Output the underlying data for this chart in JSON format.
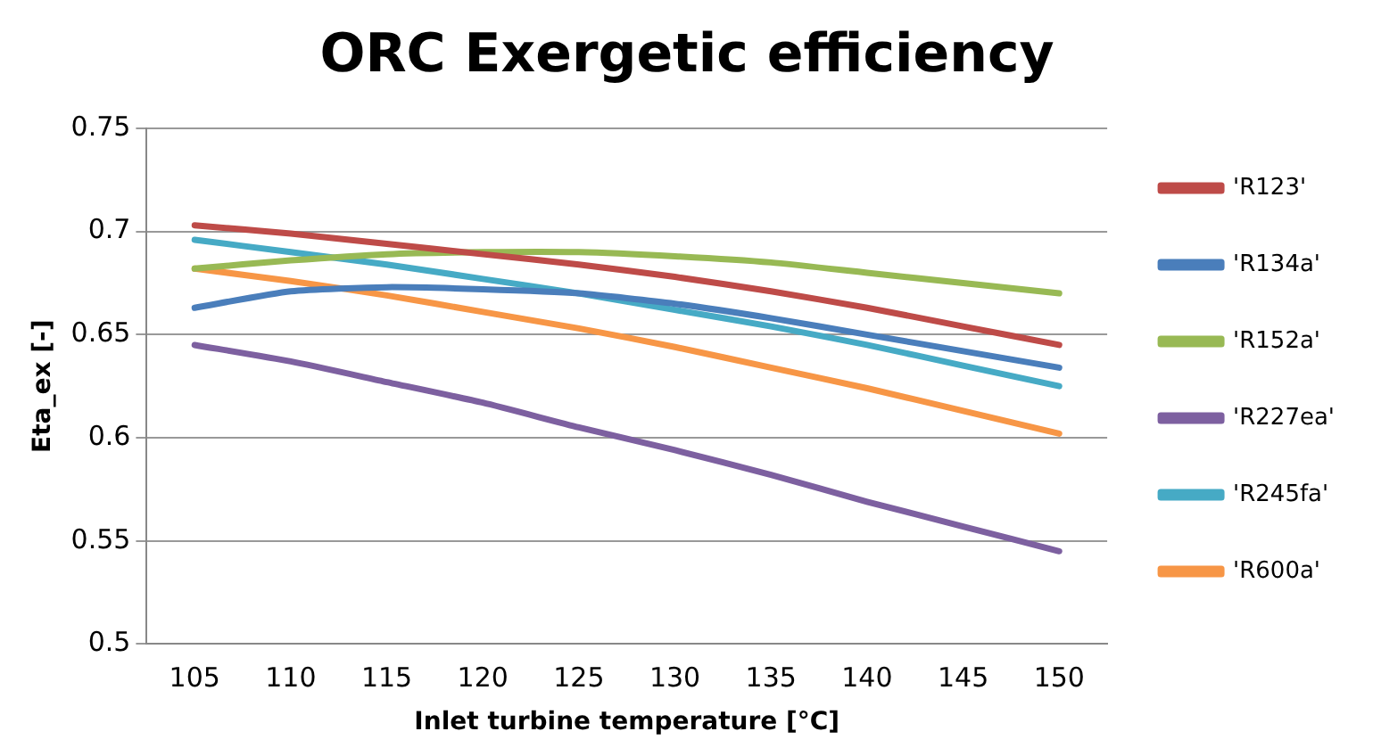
{
  "chart_data": {
    "type": "line",
    "title": "ORC Exergetic efficiency",
    "xlabel": "Inlet turbine temperature [°C]",
    "ylabel": "Eta_ex [-]",
    "categories": [
      "105",
      "110",
      "115",
      "120",
      "125",
      "130",
      "135",
      "140",
      "145",
      "150"
    ],
    "series": [
      {
        "name": "'R123'",
        "color": "#be4b48",
        "values": [
          0.703,
          0.699,
          0.694,
          0.689,
          0.684,
          0.678,
          0.671,
          0.663,
          0.654,
          0.645
        ]
      },
      {
        "name": "'R134a'",
        "color": "#4a7ebb",
        "values": [
          0.663,
          0.671,
          0.673,
          0.672,
          0.67,
          0.665,
          0.658,
          0.65,
          0.642,
          0.634
        ]
      },
      {
        "name": "'R152a'",
        "color": "#98b954",
        "values": [
          0.682,
          0.686,
          0.689,
          0.69,
          0.69,
          0.688,
          0.685,
          0.68,
          0.675,
          0.67
        ]
      },
      {
        "name": "'R227ea'",
        "color": "#7d60a0",
        "values": [
          0.645,
          0.637,
          0.627,
          0.617,
          0.605,
          0.594,
          0.582,
          0.569,
          0.557,
          0.545
        ]
      },
      {
        "name": "'R245fa'",
        "color": "#46aac5",
        "values": [
          0.696,
          0.69,
          0.684,
          0.677,
          0.67,
          0.662,
          0.654,
          0.645,
          0.635,
          0.625
        ]
      },
      {
        "name": "'R600a'",
        "color": "#f79646",
        "values": [
          0.682,
          0.676,
          0.669,
          0.661,
          0.653,
          0.644,
          0.634,
          0.624,
          0.613,
          0.602
        ]
      }
    ],
    "ylim": [
      0.5,
      0.75
    ],
    "yticks": [
      0.5,
      0.55,
      0.6,
      0.65,
      0.7,
      0.75
    ],
    "grid": "y",
    "legend": "right",
    "marker": "none",
    "line_style": "solid"
  }
}
